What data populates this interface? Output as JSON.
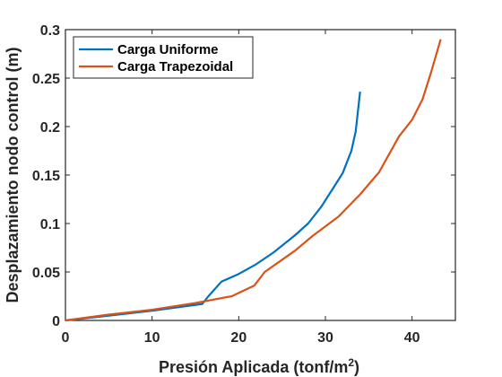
{
  "chart_data": {
    "type": "line",
    "title": "",
    "xlabel": "Presión Aplicada (tonf/m",
    "xlabel_sup": "2",
    "xlabel_suffix": ")",
    "ylabel": "Desplazamiento nodo control (m)",
    "xlim": [
      0,
      45
    ],
    "ylim": [
      0,
      0.3
    ],
    "xticks": [
      0,
      10,
      20,
      30,
      40
    ],
    "yticks": [
      0,
      0.05,
      0.1,
      0.15,
      0.2,
      0.25,
      0.3
    ],
    "xtick_labels": [
      "0",
      "10",
      "20",
      "30",
      "40"
    ],
    "ytick_labels": [
      "0",
      "0.05",
      "0.1",
      "0.15",
      "0.2",
      "0.25",
      "0.3"
    ],
    "grid": false,
    "legend_position": "top-left",
    "series": [
      {
        "name": "Carga Uniforme",
        "color": "#0072BD",
        "x": [
          0,
          5,
          10,
          15.8,
          16.5,
          18,
          20,
          22,
          24,
          26.5,
          28,
          29.5,
          31,
          32,
          33,
          33.5,
          34
        ],
        "y": [
          0,
          0.005,
          0.01,
          0.017,
          0.025,
          0.04,
          0.048,
          0.058,
          0.07,
          0.088,
          0.1,
          0.117,
          0.138,
          0.152,
          0.175,
          0.195,
          0.236
        ]
      },
      {
        "name": "Carga Trapezoidal",
        "color": "#D95319",
        "x": [
          0,
          5,
          10,
          15,
          19.2,
          21.8,
          23,
          26.5,
          28.5,
          31.5,
          34,
          36.2,
          38.5,
          40,
          41.2,
          42.2,
          43.3
        ],
        "y": [
          0,
          0.006,
          0.011,
          0.018,
          0.025,
          0.036,
          0.05,
          0.072,
          0.087,
          0.107,
          0.13,
          0.153,
          0.19,
          0.207,
          0.228,
          0.256,
          0.29
        ]
      }
    ]
  }
}
